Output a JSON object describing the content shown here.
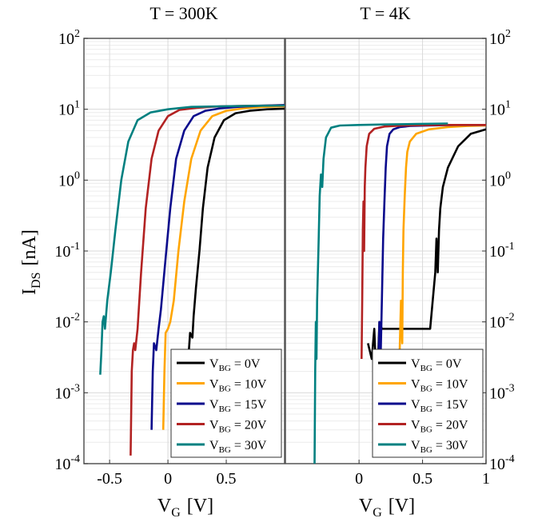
{
  "chart_data": [
    {
      "type": "line",
      "title": "T = 300K",
      "xlabel": "V",
      "xlabel_sub": "G",
      "xlabel_unit": "[V]",
      "ylabel": "I",
      "ylabel_sub": "DS",
      "ylabel_unit": "[nA]",
      "y_scale": "log",
      "xlim": [
        -0.72,
        1.0
      ],
      "ylim": [
        0.0001,
        100
      ],
      "x_ticks": [
        -0.5,
        0,
        0.5
      ],
      "x_tick_labels": [
        "-0.5",
        "0",
        "0.5"
      ],
      "y_ticks": [
        {
          "base": "10",
          "exp": "2",
          "value": 100
        },
        {
          "base": "10",
          "exp": "1",
          "value": 10
        },
        {
          "base": "10",
          "exp": "0",
          "value": 1
        },
        {
          "base": "10",
          "exp": "-1",
          "value": 0.1
        },
        {
          "base": "10",
          "exp": "-2",
          "value": 0.01
        },
        {
          "base": "10",
          "exp": "-3",
          "value": 0.001
        },
        {
          "base": "10",
          "exp": "-4",
          "value": 0.0001
        }
      ],
      "grid": true,
      "legend_position": "bottom-right",
      "series": [
        {
          "name_main": "V",
          "name_sub": "BG",
          "name_rest": " = 0V",
          "color": "#000000",
          "x": [
            0.17,
            0.18,
            0.19,
            0.21,
            0.22,
            0.24,
            0.27,
            0.3,
            0.34,
            0.4,
            0.48,
            0.58,
            0.7,
            0.85,
            1.0
          ],
          "y": [
            0.0003,
            0.004,
            0.007,
            0.006,
            0.012,
            0.03,
            0.1,
            0.4,
            1.5,
            4,
            7,
            8.8,
            9.5,
            10,
            10.2
          ]
        },
        {
          "name_main": "V",
          "name_sub": "BG",
          "name_rest": " = 10V",
          "color": "#FFA500",
          "x": [
            -0.04,
            -0.03,
            -0.02,
            0.0,
            0.02,
            0.05,
            0.09,
            0.14,
            0.2,
            0.28,
            0.38,
            0.5,
            0.65,
            0.82,
            1.0
          ],
          "y": [
            0.0003,
            0.002,
            0.007,
            0.008,
            0.01,
            0.02,
            0.1,
            0.5,
            2,
            5,
            8,
            9.5,
            10.3,
            10.8,
            11
          ]
        },
        {
          "name_main": "V",
          "name_sub": "BG",
          "name_rest": " = 15V",
          "color": "#0A0A8C",
          "x": [
            -0.14,
            -0.13,
            -0.12,
            -0.1,
            -0.08,
            -0.06,
            -0.02,
            0.02,
            0.07,
            0.14,
            0.22,
            0.32,
            0.45,
            0.6,
            0.78,
            1.0
          ],
          "y": [
            0.0003,
            0.002,
            0.005,
            0.004,
            0.008,
            0.015,
            0.08,
            0.4,
            2,
            5,
            8,
            9.5,
            10.3,
            10.8,
            11.2,
            11.5
          ]
        },
        {
          "name_main": "V",
          "name_sub": "BG",
          "name_rest": " = 20V",
          "color": "#B22222",
          "x": [
            -0.32,
            -0.31,
            -0.3,
            -0.29,
            -0.28,
            -0.26,
            -0.23,
            -0.19,
            -0.14,
            -0.08,
            0.0,
            0.1,
            0.25,
            0.45,
            0.7,
            1.0
          ],
          "y": [
            0.00013,
            0.002,
            0.004,
            0.005,
            0.004,
            0.008,
            0.05,
            0.4,
            2,
            5,
            8,
            9.8,
            10.5,
            11,
            11.2,
            11.3
          ]
        },
        {
          "name_main": "V",
          "name_sub": "BG",
          "name_rest": " = 30V",
          "color": "#008080",
          "x": [
            -0.58,
            -0.57,
            -0.56,
            -0.55,
            -0.54,
            -0.52,
            -0.49,
            -0.45,
            -0.4,
            -0.34,
            -0.26,
            -0.15,
            0.0,
            0.2,
            0.45,
            0.75,
            1.0
          ],
          "y": [
            0.0018,
            0.004,
            0.01,
            0.012,
            0.008,
            0.02,
            0.05,
            0.2,
            1,
            3.5,
            7,
            9,
            10,
            10.8,
            11,
            11.2,
            11.3
          ]
        }
      ]
    },
    {
      "type": "line",
      "title": "T = 4K",
      "xlabel": "V",
      "xlabel_sub": "G",
      "xlabel_unit": "[V]",
      "y_scale": "log",
      "xlim": [
        -0.58,
        1.0
      ],
      "ylim": [
        0.0001,
        100
      ],
      "x_ticks": [
        0,
        0.5,
        1
      ],
      "x_tick_labels": [
        "0",
        "0.5",
        "1"
      ],
      "y_ticks": [
        {
          "base": "10",
          "exp": "2",
          "value": 100
        },
        {
          "base": "10",
          "exp": "1",
          "value": 10
        },
        {
          "base": "10",
          "exp": "0",
          "value": 1
        },
        {
          "base": "10",
          "exp": "-1",
          "value": 0.1
        },
        {
          "base": "10",
          "exp": "-2",
          "value": 0.01
        },
        {
          "base": "10",
          "exp": "-3",
          "value": 0.001
        },
        {
          "base": "10",
          "exp": "-4",
          "value": 0.0001
        }
      ],
      "grid": true,
      "legend_position": "bottom-right",
      "series": [
        {
          "name_main": "V",
          "name_sub": "BG",
          "name_rest": " = 0V",
          "color": "#000000",
          "x": [
            0.07,
            0.1,
            0.12,
            0.14,
            0.16,
            0.18,
            0.3,
            0.45,
            0.56,
            0.58,
            0.6,
            0.61,
            0.62,
            0.63,
            0.64,
            0.66,
            0.7,
            0.78,
            0.88,
            1.0
          ],
          "y": [
            0.005,
            0.003,
            0.008,
            0.001,
            0.01,
            0.008,
            0.008,
            0.008,
            0.008,
            0.02,
            0.05,
            0.15,
            0.05,
            0.2,
            0.4,
            0.8,
            1.5,
            3,
            4.5,
            5.2
          ]
        },
        {
          "name_main": "V",
          "name_sub": "BG",
          "name_rest": " = 10V",
          "color": "#FFA500",
          "x": [
            0.32,
            0.33,
            0.34,
            0.345,
            0.35,
            0.36,
            0.37,
            0.38,
            0.4,
            0.45,
            0.55,
            0.7,
            0.85,
            1.0
          ],
          "y": [
            0.004,
            0.02,
            0.005,
            0.05,
            0.2,
            0.6,
            1.5,
            2.5,
            3.5,
            4.5,
            5.2,
            5.6,
            5.8,
            5.9
          ]
        },
        {
          "name_main": "V",
          "name_sub": "BG",
          "name_rest": " = 15V",
          "color": "#0A0A8C",
          "x": [
            0.15,
            0.16,
            0.17,
            0.18,
            0.19,
            0.2,
            0.21,
            0.22,
            0.24,
            0.27,
            0.32,
            0.4,
            0.55,
            0.75,
            1.0
          ],
          "y": [
            0.0015,
            0.01,
            0.003,
            0.02,
            0.15,
            0.5,
            1.5,
            3,
            4.5,
            5.2,
            5.6,
            5.8,
            5.9,
            6,
            6
          ]
        },
        {
          "name_main": "V",
          "name_sub": "BG",
          "name_rest": " = 20V",
          "color": "#B22222",
          "x": [
            0.02,
            0.025,
            0.03,
            0.035,
            0.04,
            0.045,
            0.05,
            0.06,
            0.08,
            0.12,
            0.2,
            0.35,
            0.6,
            1.0
          ],
          "y": [
            0.003,
            0.02,
            0.2,
            0.5,
            0.1,
            0.8,
            1.5,
            3,
            4.5,
            5.3,
            5.7,
            5.9,
            6,
            6
          ]
        },
        {
          "name_main": "V",
          "name_sub": "BG",
          "name_rest": " = 30V",
          "color": "#008080",
          "x": [
            -0.35,
            -0.345,
            -0.34,
            -0.335,
            -0.33,
            -0.32,
            -0.31,
            -0.3,
            -0.29,
            -0.28,
            -0.26,
            -0.22,
            -0.15,
            0.0,
            0.2,
            0.45,
            0.7
          ],
          "y": [
            0.0001,
            0.002,
            0.01,
            0.003,
            0.02,
            0.1,
            0.6,
            1.2,
            0.8,
            2,
            4,
            5.5,
            5.9,
            6,
            6.1,
            6.2,
            6.3
          ]
        }
      ]
    }
  ]
}
